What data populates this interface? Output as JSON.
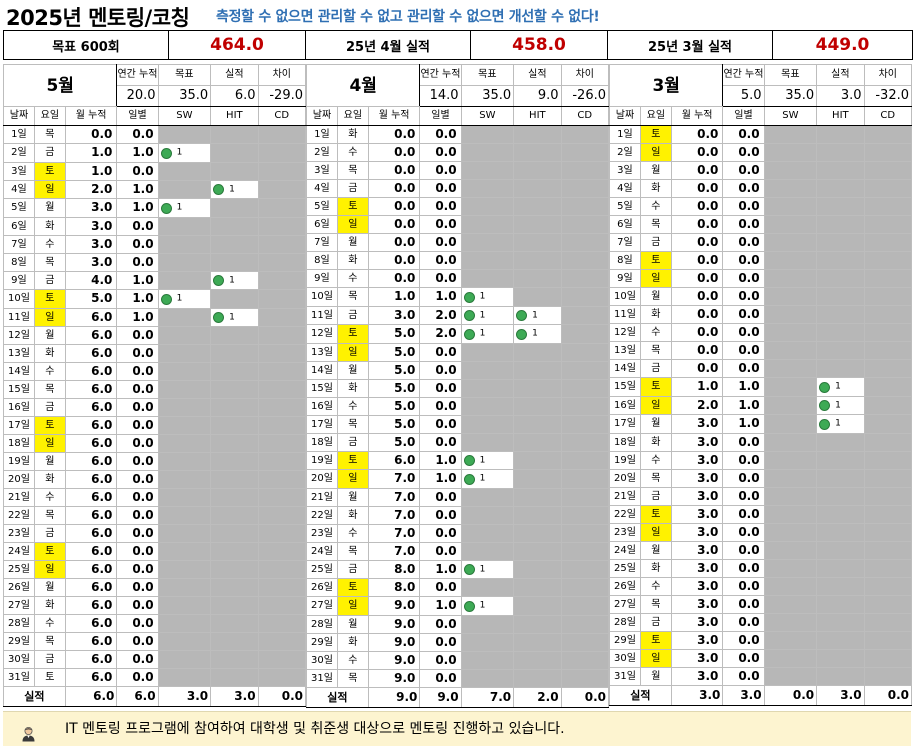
{
  "header": {
    "title": "2025년 멘토링/코칭",
    "motto": "측정할 수 없으면 관리할 수 없고 관리할 수 없으면 개선할 수 없다!"
  },
  "summary": [
    {
      "label": "목표 600회",
      "value": "464.0"
    },
    {
      "label": "25년 4월 실적",
      "value": "458.0"
    },
    {
      "label": "25년 3월 실적",
      "value": "449.0"
    }
  ],
  "stat_labels": {
    "ytd": "연간 누적",
    "goal": "목표",
    "actual": "실적",
    "diff": "차이"
  },
  "columns": {
    "date": "날짜",
    "dow": "요일",
    "cum": "월 누적",
    "daily": "일별",
    "sw": "SW",
    "hit": "HIT",
    "cd": "CD"
  },
  "total_label": "실적",
  "months": [
    {
      "name": "5월",
      "stats": {
        "ytd": "20.0",
        "goal": "35.0",
        "actual": "6.0",
        "diff": "-29.0"
      },
      "days": [
        {
          "date": "1일",
          "dow": "목",
          "cum": "0.0",
          "daily": "0.0"
        },
        {
          "date": "2일",
          "dow": "금",
          "cum": "1.0",
          "daily": "1.0",
          "sw": "1"
        },
        {
          "date": "3일",
          "dow": "토",
          "hl": true,
          "cum": "1.0",
          "daily": "0.0"
        },
        {
          "date": "4일",
          "dow": "일",
          "hl": true,
          "cum": "2.0",
          "daily": "1.0",
          "hit": "1"
        },
        {
          "date": "5일",
          "dow": "월",
          "cum": "3.0",
          "daily": "1.0",
          "sw": "1"
        },
        {
          "date": "6일",
          "dow": "화",
          "cum": "3.0",
          "daily": "0.0"
        },
        {
          "date": "7일",
          "dow": "수",
          "cum": "3.0",
          "daily": "0.0"
        },
        {
          "date": "8일",
          "dow": "목",
          "cum": "3.0",
          "daily": "0.0"
        },
        {
          "date": "9일",
          "dow": "금",
          "cum": "4.0",
          "daily": "1.0",
          "hit": "1"
        },
        {
          "date": "10일",
          "dow": "토",
          "hl": true,
          "cum": "5.0",
          "daily": "1.0",
          "sw": "1"
        },
        {
          "date": "11일",
          "dow": "일",
          "hl": true,
          "cum": "6.0",
          "daily": "1.0",
          "hit": "1"
        },
        {
          "date": "12일",
          "dow": "월",
          "cum": "6.0",
          "daily": "0.0"
        },
        {
          "date": "13일",
          "dow": "화",
          "cum": "6.0",
          "daily": "0.0"
        },
        {
          "date": "14일",
          "dow": "수",
          "cum": "6.0",
          "daily": "0.0"
        },
        {
          "date": "15일",
          "dow": "목",
          "cum": "6.0",
          "daily": "0.0"
        },
        {
          "date": "16일",
          "dow": "금",
          "cum": "6.0",
          "daily": "0.0"
        },
        {
          "date": "17일",
          "dow": "토",
          "hl": true,
          "cum": "6.0",
          "daily": "0.0"
        },
        {
          "date": "18일",
          "dow": "일",
          "hl": true,
          "cum": "6.0",
          "daily": "0.0"
        },
        {
          "date": "19일",
          "dow": "월",
          "cum": "6.0",
          "daily": "0.0"
        },
        {
          "date": "20일",
          "dow": "화",
          "cum": "6.0",
          "daily": "0.0"
        },
        {
          "date": "21일",
          "dow": "수",
          "cum": "6.0",
          "daily": "0.0"
        },
        {
          "date": "22일",
          "dow": "목",
          "cum": "6.0",
          "daily": "0.0"
        },
        {
          "date": "23일",
          "dow": "금",
          "cum": "6.0",
          "daily": "0.0"
        },
        {
          "date": "24일",
          "dow": "토",
          "hl": true,
          "cum": "6.0",
          "daily": "0.0"
        },
        {
          "date": "25일",
          "dow": "일",
          "hl": true,
          "cum": "6.0",
          "daily": "0.0"
        },
        {
          "date": "26일",
          "dow": "월",
          "cum": "6.0",
          "daily": "0.0"
        },
        {
          "date": "27일",
          "dow": "화",
          "cum": "6.0",
          "daily": "0.0"
        },
        {
          "date": "28일",
          "dow": "수",
          "cum": "6.0",
          "daily": "0.0"
        },
        {
          "date": "29일",
          "dow": "목",
          "cum": "6.0",
          "daily": "0.0"
        },
        {
          "date": "30일",
          "dow": "금",
          "cum": "6.0",
          "daily": "0.0"
        },
        {
          "date": "31일",
          "dow": "토",
          "cum": "6.0",
          "daily": "0.0"
        }
      ],
      "totals": {
        "cum": "6.0",
        "daily": "6.0",
        "sw": "3.0",
        "hit": "3.0",
        "cd": "0.0"
      }
    },
    {
      "name": "4월",
      "stats": {
        "ytd": "14.0",
        "goal": "35.0",
        "actual": "9.0",
        "diff": "-26.0"
      },
      "days": [
        {
          "date": "1일",
          "dow": "화",
          "cum": "0.0",
          "daily": "0.0"
        },
        {
          "date": "2일",
          "dow": "수",
          "cum": "0.0",
          "daily": "0.0"
        },
        {
          "date": "3일",
          "dow": "목",
          "cum": "0.0",
          "daily": "0.0"
        },
        {
          "date": "4일",
          "dow": "금",
          "cum": "0.0",
          "daily": "0.0"
        },
        {
          "date": "5일",
          "dow": "토",
          "hl": true,
          "cum": "0.0",
          "daily": "0.0"
        },
        {
          "date": "6일",
          "dow": "일",
          "hl": true,
          "cum": "0.0",
          "daily": "0.0"
        },
        {
          "date": "7일",
          "dow": "월",
          "cum": "0.0",
          "daily": "0.0"
        },
        {
          "date": "8일",
          "dow": "화",
          "cum": "0.0",
          "daily": "0.0"
        },
        {
          "date": "9일",
          "dow": "수",
          "cum": "0.0",
          "daily": "0.0"
        },
        {
          "date": "10일",
          "dow": "목",
          "cum": "1.0",
          "daily": "1.0",
          "sw": "1"
        },
        {
          "date": "11일",
          "dow": "금",
          "cum": "3.0",
          "daily": "2.0",
          "sw": "1",
          "hit": "1"
        },
        {
          "date": "12일",
          "dow": "토",
          "hl": true,
          "cum": "5.0",
          "daily": "2.0",
          "sw": "1",
          "hit": "1"
        },
        {
          "date": "13일",
          "dow": "일",
          "hl": true,
          "cum": "5.0",
          "daily": "0.0"
        },
        {
          "date": "14일",
          "dow": "월",
          "cum": "5.0",
          "daily": "0.0"
        },
        {
          "date": "15일",
          "dow": "화",
          "cum": "5.0",
          "daily": "0.0"
        },
        {
          "date": "16일",
          "dow": "수",
          "cum": "5.0",
          "daily": "0.0"
        },
        {
          "date": "17일",
          "dow": "목",
          "cum": "5.0",
          "daily": "0.0"
        },
        {
          "date": "18일",
          "dow": "금",
          "cum": "5.0",
          "daily": "0.0"
        },
        {
          "date": "19일",
          "dow": "토",
          "hl": true,
          "cum": "6.0",
          "daily": "1.0",
          "sw": "1"
        },
        {
          "date": "20일",
          "dow": "일",
          "hl": true,
          "cum": "7.0",
          "daily": "1.0",
          "sw": "1"
        },
        {
          "date": "21일",
          "dow": "월",
          "cum": "7.0",
          "daily": "0.0"
        },
        {
          "date": "22일",
          "dow": "화",
          "cum": "7.0",
          "daily": "0.0"
        },
        {
          "date": "23일",
          "dow": "수",
          "cum": "7.0",
          "daily": "0.0"
        },
        {
          "date": "24일",
          "dow": "목",
          "cum": "7.0",
          "daily": "0.0"
        },
        {
          "date": "25일",
          "dow": "금",
          "cum": "8.0",
          "daily": "1.0",
          "sw": "1"
        },
        {
          "date": "26일",
          "dow": "토",
          "hl": true,
          "cum": "8.0",
          "daily": "0.0"
        },
        {
          "date": "27일",
          "dow": "일",
          "hl": true,
          "cum": "9.0",
          "daily": "1.0",
          "sw": "1"
        },
        {
          "date": "28일",
          "dow": "월",
          "cum": "9.0",
          "daily": "0.0"
        },
        {
          "date": "29일",
          "dow": "화",
          "cum": "9.0",
          "daily": "0.0"
        },
        {
          "date": "30일",
          "dow": "수",
          "cum": "9.0",
          "daily": "0.0"
        },
        {
          "date": "31일",
          "dow": "목",
          "cum": "9.0",
          "daily": "0.0"
        }
      ],
      "totals": {
        "cum": "9.0",
        "daily": "9.0",
        "sw": "7.0",
        "hit": "2.0",
        "cd": "0.0"
      }
    },
    {
      "name": "3월",
      "stats": {
        "ytd": "5.0",
        "goal": "35.0",
        "actual": "3.0",
        "diff": "-32.0"
      },
      "days": [
        {
          "date": "1일",
          "dow": "토",
          "hl": true,
          "cum": "0.0",
          "daily": "0.0"
        },
        {
          "date": "2일",
          "dow": "일",
          "hl": true,
          "cum": "0.0",
          "daily": "0.0"
        },
        {
          "date": "3일",
          "dow": "월",
          "cum": "0.0",
          "daily": "0.0"
        },
        {
          "date": "4일",
          "dow": "화",
          "cum": "0.0",
          "daily": "0.0"
        },
        {
          "date": "5일",
          "dow": "수",
          "cum": "0.0",
          "daily": "0.0"
        },
        {
          "date": "6일",
          "dow": "목",
          "cum": "0.0",
          "daily": "0.0"
        },
        {
          "date": "7일",
          "dow": "금",
          "cum": "0.0",
          "daily": "0.0"
        },
        {
          "date": "8일",
          "dow": "토",
          "hl": true,
          "cum": "0.0",
          "daily": "0.0"
        },
        {
          "date": "9일",
          "dow": "일",
          "hl": true,
          "cum": "0.0",
          "daily": "0.0"
        },
        {
          "date": "10일",
          "dow": "월",
          "cum": "0.0",
          "daily": "0.0"
        },
        {
          "date": "11일",
          "dow": "화",
          "cum": "0.0",
          "daily": "0.0"
        },
        {
          "date": "12일",
          "dow": "수",
          "cum": "0.0",
          "daily": "0.0"
        },
        {
          "date": "13일",
          "dow": "목",
          "cum": "0.0",
          "daily": "0.0"
        },
        {
          "date": "14일",
          "dow": "금",
          "cum": "0.0",
          "daily": "0.0"
        },
        {
          "date": "15일",
          "dow": "토",
          "hl": true,
          "cum": "1.0",
          "daily": "1.0",
          "hit": "1"
        },
        {
          "date": "16일",
          "dow": "일",
          "hl": true,
          "cum": "2.0",
          "daily": "1.0",
          "hit": "1"
        },
        {
          "date": "17일",
          "dow": "월",
          "cum": "3.0",
          "daily": "1.0",
          "hit": "1"
        },
        {
          "date": "18일",
          "dow": "화",
          "cum": "3.0",
          "daily": "0.0"
        },
        {
          "date": "19일",
          "dow": "수",
          "cum": "3.0",
          "daily": "0.0"
        },
        {
          "date": "20일",
          "dow": "목",
          "cum": "3.0",
          "daily": "0.0"
        },
        {
          "date": "21일",
          "dow": "금",
          "cum": "3.0",
          "daily": "0.0"
        },
        {
          "date": "22일",
          "dow": "토",
          "hl": true,
          "cum": "3.0",
          "daily": "0.0"
        },
        {
          "date": "23일",
          "dow": "일",
          "hl": true,
          "cum": "3.0",
          "daily": "0.0"
        },
        {
          "date": "24일",
          "dow": "월",
          "cum": "3.0",
          "daily": "0.0"
        },
        {
          "date": "25일",
          "dow": "화",
          "cum": "3.0",
          "daily": "0.0"
        },
        {
          "date": "26일",
          "dow": "수",
          "cum": "3.0",
          "daily": "0.0"
        },
        {
          "date": "27일",
          "dow": "목",
          "cum": "3.0",
          "daily": "0.0"
        },
        {
          "date": "28일",
          "dow": "금",
          "cum": "3.0",
          "daily": "0.0"
        },
        {
          "date": "29일",
          "dow": "토",
          "hl": true,
          "cum": "3.0",
          "daily": "0.0"
        },
        {
          "date": "30일",
          "dow": "일",
          "hl": true,
          "cum": "3.0",
          "daily": "0.0"
        },
        {
          "date": "31일",
          "dow": "월",
          "cum": "3.0",
          "daily": "0.0"
        }
      ],
      "totals": {
        "cum": "3.0",
        "daily": "3.0",
        "sw": "0.0",
        "hit": "3.0",
        "cd": "0.0"
      }
    }
  ],
  "footer": {
    "icon": "person-icon",
    "text": "IT 멘토링 프로그램에 참여하여 대학생 및 취준생 대상으로 멘토링 진행하고 있습니다."
  },
  "colors": {
    "motto": "#2f6fb3",
    "summary_value": "#c00000",
    "weekend_highlight": "#fff200",
    "empty_cell": "#b7b7b7",
    "activity_dot": "#3daa55",
    "footer_bg": "#fdf4d0"
  }
}
